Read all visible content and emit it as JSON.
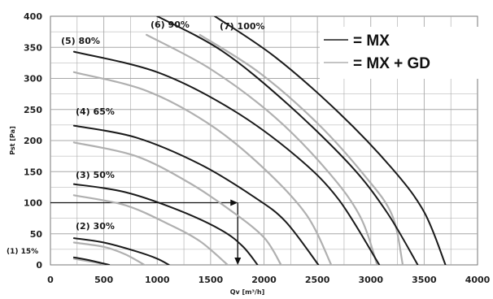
{
  "chart_data": {
    "type": "line",
    "title": "",
    "xlabel": "Qv [m³/h]",
    "ylabel": "Pst [Pa]",
    "xlim": [
      0,
      4000
    ],
    "ylim": [
      0,
      400
    ],
    "x_ticks": [
      "0",
      "500",
      "1000",
      "1500",
      "2000",
      "2500",
      "3000",
      "3500",
      "4000"
    ],
    "y_ticks": [
      "0",
      "50",
      "100",
      "150",
      "200",
      "250",
      "300",
      "350",
      "400"
    ],
    "grid": true,
    "legend_position": "top-right",
    "legend": [
      {
        "label": "= MX",
        "color": "#1a1a1a"
      },
      {
        "label": "= MX + GD",
        "color": "#b0b0b0"
      }
    ],
    "series": [
      {
        "label": "(1) 15%",
        "group": "MX",
        "x": [
          220,
          350,
          450,
          550
        ],
        "y": [
          12,
          8,
          4,
          0
        ]
      },
      {
        "label": "",
        "group": "MX + GD",
        "x": [
          220,
          350,
          450,
          500
        ],
        "y": [
          10,
          6,
          3,
          0
        ]
      },
      {
        "label": "(2) 30%",
        "group": "MX",
        "x": [
          220,
          500,
          800,
          1000,
          1110
        ],
        "y": [
          43,
          36,
          22,
          10,
          0
        ]
      },
      {
        "label": "",
        "group": "MX + GD",
        "x": [
          220,
          500,
          700,
          880
        ],
        "y": [
          36,
          29,
          17,
          0
        ]
      },
      {
        "label": "(3) 50%",
        "group": "MX",
        "x": [
          220,
          700,
          1200,
          1600,
          1800,
          1940
        ],
        "y": [
          130,
          117,
          88,
          56,
          30,
          0
        ]
      },
      {
        "label": "",
        "group": "MX + GD",
        "x": [
          220,
          700,
          1100,
          1400,
          1660
        ],
        "y": [
          112,
          96,
          66,
          38,
          0
        ]
      },
      {
        "label": "(4) 65%",
        "group": "MX",
        "x": [
          220,
          800,
          1400,
          1900,
          2200,
          2510
        ],
        "y": [
          224,
          205,
          162,
          110,
          70,
          0
        ]
      },
      {
        "label": "",
        "group": "MX + GD",
        "x": [
          220,
          800,
          1300,
          1700,
          2000,
          2160
        ],
        "y": [
          197,
          175,
          132,
          86,
          44,
          0
        ]
      },
      {
        "label": "(5) 80%",
        "group": "MX",
        "x": [
          220,
          1000,
          1700,
          2300,
          2700,
          3080
        ],
        "y": [
          343,
          310,
          250,
          175,
          105,
          0
        ]
      },
      {
        "label": "",
        "group": "MX + GD",
        "x": [
          220,
          900,
          1500,
          2000,
          2400,
          2630
        ],
        "y": [
          310,
          280,
          225,
          155,
          80,
          0
        ]
      },
      {
        "label": "(6) 90%",
        "group": "MX",
        "x": [
          1000,
          1600,
          2200,
          2800,
          3150,
          3440
        ],
        "y": [
          400,
          345,
          262,
          162,
          85,
          0
        ]
      },
      {
        "label": "",
        "group": "MX + GD",
        "x": [
          900,
          1500,
          2100,
          2600,
          2900,
          3060
        ],
        "y": [
          370,
          315,
          238,
          150,
          78,
          0
        ]
      },
      {
        "label": "(7) 100%",
        "group": "MX",
        "x": [
          1540,
          2100,
          2700,
          3200,
          3500,
          3700
        ],
        "y": [
          400,
          335,
          245,
          155,
          85,
          0
        ]
      },
      {
        "label": "",
        "group": "MX + GD",
        "x": [
          1400,
          1950,
          2500,
          2950,
          3200,
          3300
        ],
        "y": [
          370,
          310,
          228,
          142,
          80,
          0
        ]
      }
    ],
    "annotations": {
      "operating_point": {
        "x": 1800,
        "y": 100
      }
    }
  }
}
